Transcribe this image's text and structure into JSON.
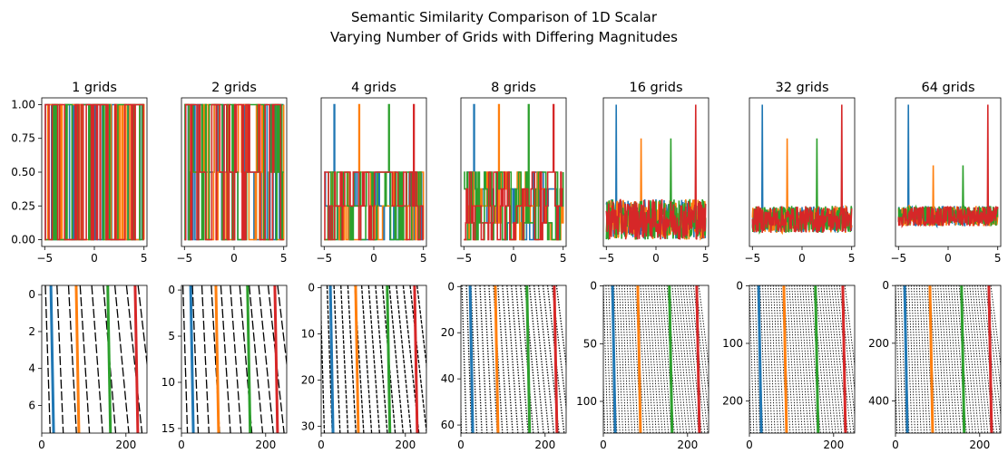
{
  "figure": {
    "title_line1": "Semantic Similarity Comparison of 1D Scalar",
    "title_line2": "Varying Number of Grids with Differing Magnitudes"
  },
  "colors": {
    "series": [
      "#1f77b4",
      "#ff7f0e",
      "#2ca02c",
      "#d62728"
    ],
    "axes": "#000000",
    "background": "#ffffff"
  },
  "chart_data": [
    {
      "type": "line",
      "title": "1 grids",
      "grids": 1,
      "xlim": [
        -5.3,
        5.3
      ],
      "ylim": [
        -0.05,
        1.05
      ],
      "xticks": [
        -5,
        0,
        5
      ],
      "yticks": [
        0,
        0.25,
        0.5,
        0.75,
        1
      ],
      "ytick_labels": [
        "0.00",
        "0.25",
        "0.50",
        "0.75",
        "1.00"
      ],
      "levels": [
        0,
        1
      ],
      "peaks_x": [
        -4,
        -1.5,
        1.5,
        4
      ],
      "series": [
        {
          "color": "#1f77b4"
        },
        {
          "color": "#ff7f0e"
        },
        {
          "color": "#2ca02c"
        },
        {
          "color": "#d62728"
        }
      ]
    },
    {
      "type": "line",
      "title": "2 grids",
      "grids": 2,
      "xlim": [
        -5.3,
        5.3
      ],
      "ylim": [
        -0.05,
        1.05
      ],
      "xticks": [
        -5,
        0,
        5
      ],
      "levels": [
        0,
        0.5,
        1
      ],
      "peaks_x": [
        -4,
        -1.5,
        1.5,
        4
      ],
      "series": [
        {
          "color": "#1f77b4"
        },
        {
          "color": "#ff7f0e"
        },
        {
          "color": "#2ca02c"
        },
        {
          "color": "#d62728"
        }
      ]
    },
    {
      "type": "line",
      "title": "4 grids",
      "grids": 4,
      "xlim": [
        -5.3,
        5.3
      ],
      "ylim": [
        -0.05,
        1.05
      ],
      "xticks": [
        -5,
        0,
        5
      ],
      "levels": [
        0,
        0.25,
        0.5,
        0.75,
        1
      ],
      "peaks_x": [
        -4,
        -1.5,
        1.5,
        4
      ],
      "series": [
        {
          "color": "#1f77b4"
        },
        {
          "color": "#ff7f0e"
        },
        {
          "color": "#2ca02c"
        },
        {
          "color": "#d62728"
        }
      ]
    },
    {
      "type": "line",
      "title": "8 grids",
      "grids": 8,
      "xlim": [
        -5.3,
        5.3
      ],
      "ylim": [
        -0.05,
        1.05
      ],
      "xticks": [
        -5,
        0,
        5
      ],
      "levels": [
        0,
        0.125,
        0.25,
        0.375,
        0.5,
        0.625,
        0.75,
        0.875,
        1
      ],
      "peaks_x": [
        -4,
        -1.5,
        1.5,
        4
      ],
      "series": [
        {
          "color": "#1f77b4"
        },
        {
          "color": "#ff7f0e"
        },
        {
          "color": "#2ca02c"
        },
        {
          "color": "#d62728"
        }
      ]
    },
    {
      "type": "line",
      "title": "16 grids",
      "grids": 16,
      "xlim": [
        -5.3,
        5.3
      ],
      "ylim": [
        -0.05,
        1.05
      ],
      "xticks": [
        -5,
        0,
        5
      ],
      "noise_range": [
        0,
        0.3
      ],
      "peaks_x": [
        -4,
        -1.5,
        1.5,
        4
      ],
      "peak_heights": [
        1,
        0.75,
        0.75,
        1
      ],
      "series": [
        {
          "color": "#1f77b4"
        },
        {
          "color": "#ff7f0e"
        },
        {
          "color": "#2ca02c"
        },
        {
          "color": "#d62728"
        }
      ]
    },
    {
      "type": "line",
      "title": "32 grids",
      "grids": 32,
      "xlim": [
        -5.3,
        5.3
      ],
      "ylim": [
        -0.05,
        1.05
      ],
      "xticks": [
        -5,
        0,
        5
      ],
      "noise_range": [
        0.05,
        0.25
      ],
      "peaks_x": [
        -4,
        -1.5,
        1.5,
        4
      ],
      "peak_heights": [
        1,
        0.75,
        0.75,
        1
      ],
      "series": [
        {
          "color": "#1f77b4"
        },
        {
          "color": "#ff7f0e"
        },
        {
          "color": "#2ca02c"
        },
        {
          "color": "#d62728"
        }
      ]
    },
    {
      "type": "line",
      "title": "64 grids",
      "grids": 64,
      "xlim": [
        -5.3,
        5.3
      ],
      "ylim": [
        -0.05,
        1.05
      ],
      "xticks": [
        -5,
        0,
        5
      ],
      "noise_range": [
        0.1,
        0.25
      ],
      "peaks_x": [
        -4,
        -1.5,
        1.5,
        4
      ],
      "peak_heights": [
        1,
        0.55,
        0.55,
        1
      ],
      "series": [
        {
          "color": "#1f77b4"
        },
        {
          "color": "#ff7f0e"
        },
        {
          "color": "#2ca02c"
        },
        {
          "color": "#d62728"
        }
      ]
    },
    {
      "type": "heatmap",
      "grids": 1,
      "rows": 8,
      "xlim": [
        0,
        250
      ],
      "ylim": [
        7.5,
        -0.5
      ],
      "xticks": [
        0,
        200
      ],
      "yticks": [
        0,
        2,
        4,
        6
      ],
      "marker_x": [
        25,
        85,
        160,
        225
      ]
    },
    {
      "type": "heatmap",
      "grids": 2,
      "rows": 16,
      "xlim": [
        0,
        250
      ],
      "ylim": [
        15.5,
        -0.5
      ],
      "xticks": [
        0,
        200
      ],
      "yticks": [
        0,
        5,
        10,
        15
      ],
      "marker_x": [
        25,
        85,
        160,
        225
      ]
    },
    {
      "type": "heatmap",
      "grids": 4,
      "rows": 32,
      "xlim": [
        0,
        250
      ],
      "ylim": [
        31.5,
        -0.5
      ],
      "xticks": [
        0,
        200
      ],
      "yticks": [
        0,
        10,
        20,
        30
      ],
      "marker_x": [
        25,
        85,
        160,
        225
      ]
    },
    {
      "type": "heatmap",
      "grids": 8,
      "rows": 64,
      "xlim": [
        0,
        250
      ],
      "ylim": [
        63.5,
        -0.5
      ],
      "xticks": [
        0,
        200
      ],
      "yticks": [
        0,
        20,
        40,
        60
      ],
      "marker_x": [
        25,
        85,
        160,
        225
      ]
    },
    {
      "type": "heatmap",
      "grids": 16,
      "rows": 128,
      "xlim": [
        0,
        250
      ],
      "ylim": [
        127.5,
        -0.5
      ],
      "xticks": [
        0,
        200
      ],
      "yticks": [
        0,
        50,
        100
      ],
      "marker_x": [
        25,
        85,
        160,
        225
      ]
    },
    {
      "type": "heatmap",
      "grids": 32,
      "rows": 256,
      "xlim": [
        0,
        250
      ],
      "ylim": [
        255.5,
        -0.5
      ],
      "xticks": [
        0,
        200
      ],
      "yticks": [
        0,
        100,
        200
      ],
      "marker_x": [
        25,
        85,
        160,
        225
      ]
    },
    {
      "type": "heatmap",
      "grids": 64,
      "rows": 512,
      "xlim": [
        0,
        250
      ],
      "ylim": [
        511.5,
        -0.5
      ],
      "xticks": [
        0,
        200
      ],
      "yticks": [
        0,
        200,
        400
      ],
      "marker_x": [
        25,
        85,
        160,
        225
      ]
    }
  ]
}
